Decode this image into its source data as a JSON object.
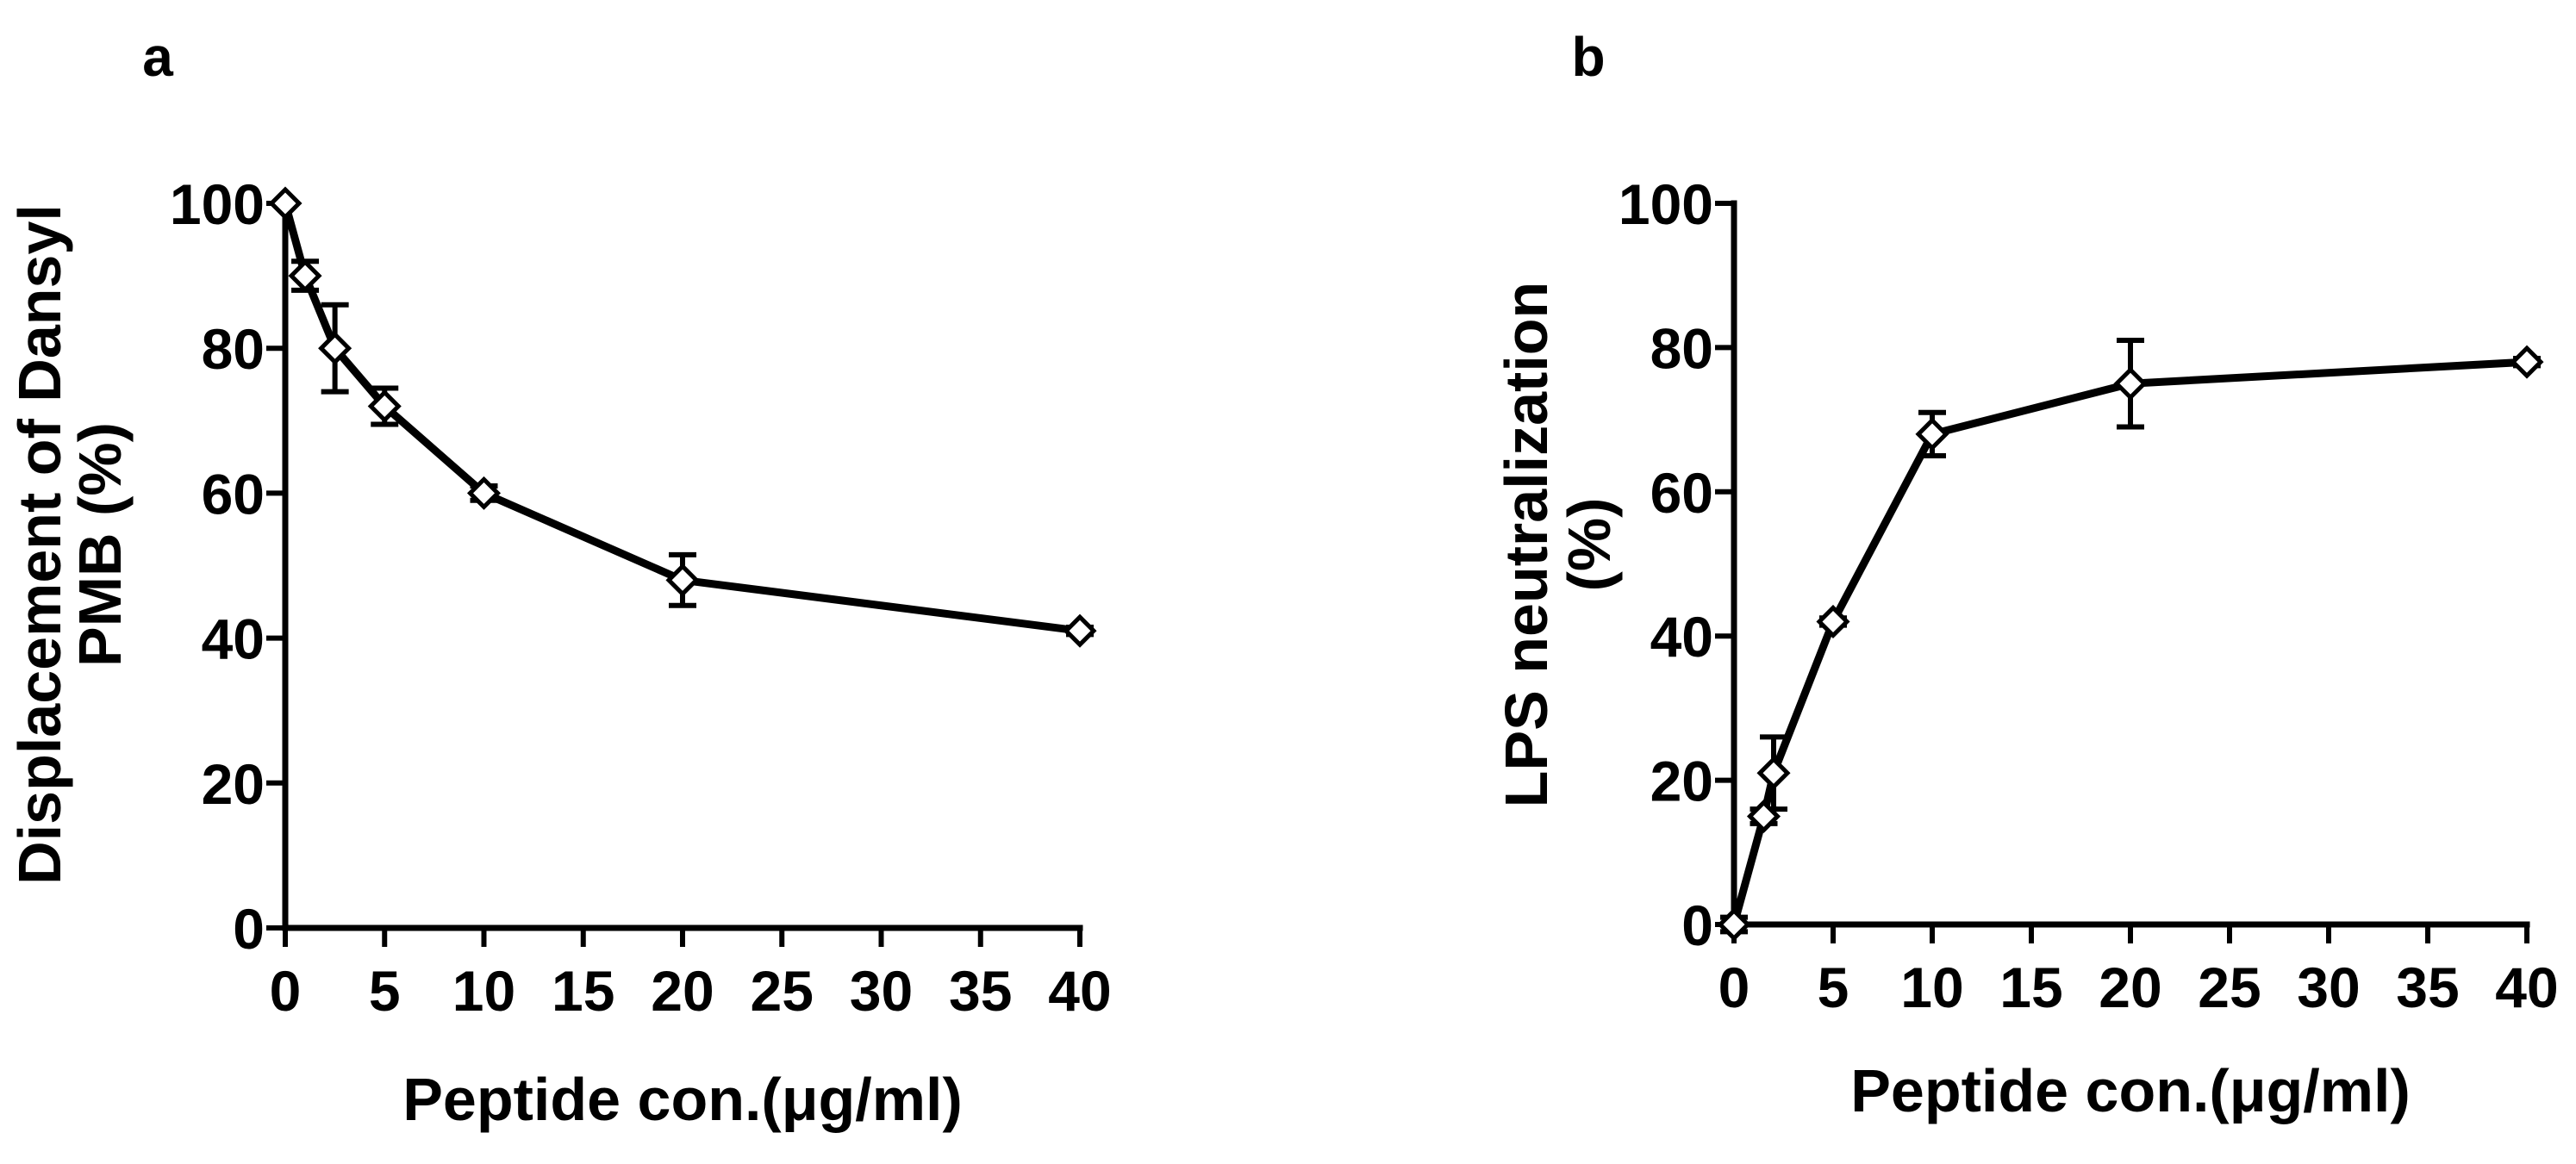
{
  "chart_data": [
    {
      "panel_label": "a",
      "type": "line",
      "xlabel": "Peptide con.(μg/ml)",
      "ylabel_lines": [
        "Displacement of Dansyl",
        "PMB (%)"
      ],
      "xlim": [
        0,
        40
      ],
      "ylim": [
        0,
        100
      ],
      "xticks": [
        "0",
        "5",
        "10",
        "15",
        "20",
        "25",
        "30",
        "35",
        "40"
      ],
      "yticks": [
        "0",
        "20",
        "40",
        "60",
        "80",
        "100"
      ],
      "x": [
        0,
        1,
        2.5,
        5,
        10,
        20,
        40
      ],
      "values": [
        100,
        90,
        80,
        72,
        60,
        48,
        41
      ],
      "error": [
        0,
        2,
        6,
        2.5,
        1,
        3.5,
        0.5
      ],
      "marker": "open-diamond",
      "grid": false,
      "legend": "none"
    },
    {
      "panel_label": "b",
      "type": "line",
      "xlabel": "Peptide con.(μg/ml)",
      "ylabel_lines": [
        "LPS neutralization",
        "(%)"
      ],
      "xlim": [
        0,
        40
      ],
      "ylim": [
        0,
        100
      ],
      "xticks": [
        "0",
        "5",
        "10",
        "15",
        "20",
        "25",
        "30",
        "35",
        "40"
      ],
      "yticks": [
        "0",
        "20",
        "40",
        "60",
        "80",
        "100"
      ],
      "x": [
        0,
        1.5,
        2,
        5,
        10,
        20,
        40
      ],
      "values": [
        0,
        15,
        21,
        42,
        68,
        75,
        78
      ],
      "error": [
        1,
        1,
        5,
        0.5,
        3,
        6,
        0.5
      ],
      "marker": "open-diamond",
      "grid": false,
      "legend": "none"
    }
  ]
}
